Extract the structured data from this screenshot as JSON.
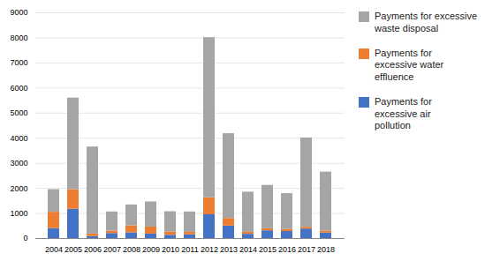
{
  "chart_data": {
    "type": "bar",
    "stacked": true,
    "categories": [
      "2004",
      "2005",
      "2006",
      "2007",
      "2008",
      "2009",
      "2010",
      "2011",
      "2012",
      "2013",
      "2014",
      "2015",
      "2016",
      "2017",
      "2018"
    ],
    "series": [
      {
        "name": "Payments for\nexcessive air\npollution",
        "color": "#4472c4",
        "values": [
          400,
          1170,
          80,
          200,
          230,
          180,
          130,
          150,
          950,
          500,
          170,
          310,
          280,
          380,
          220
        ]
      },
      {
        "name": "Payments for\nexcessive water\neffluence",
        "color": "#ed7d31",
        "values": [
          650,
          780,
          100,
          100,
          280,
          280,
          130,
          100,
          680,
          300,
          80,
          80,
          80,
          70,
          80
        ]
      },
      {
        "name": "Payments for excessive\nwaste disposal",
        "color": "#a5a5a5",
        "values": [
          900,
          3650,
          3470,
          760,
          830,
          1000,
          810,
          810,
          6380,
          3380,
          1600,
          1730,
          1430,
          3560,
          2350
        ]
      }
    ],
    "ylim": [
      0,
      9000
    ],
    "yticks": [
      0,
      1000,
      2000,
      3000,
      4000,
      5000,
      6000,
      7000,
      8000,
      9000
    ],
    "grid": true,
    "legend": "upper right"
  }
}
